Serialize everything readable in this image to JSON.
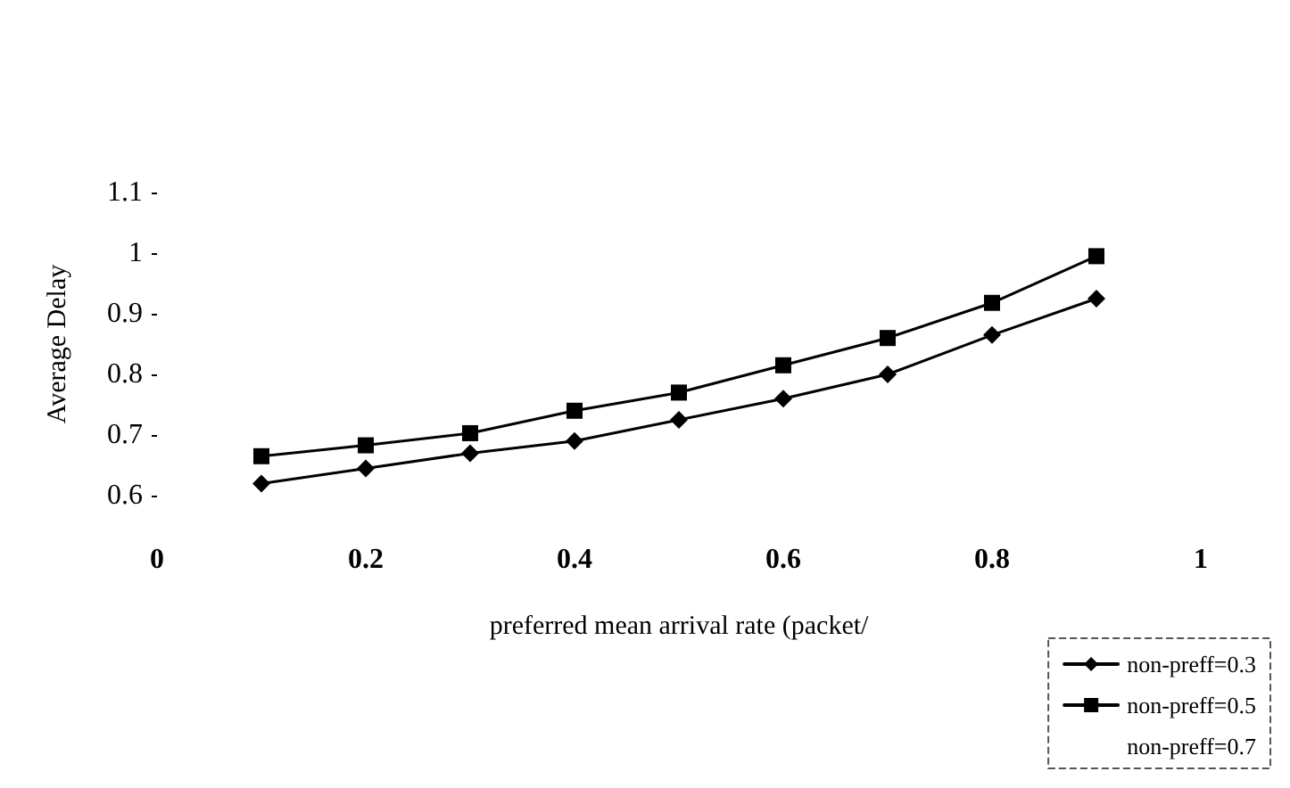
{
  "chart_data": {
    "type": "line",
    "xlabel": "preferred mean arrival rate (packet/",
    "ylabel": "Average Delay",
    "x": [
      0.1,
      0.2,
      0.3,
      0.4,
      0.5,
      0.6,
      0.7,
      0.8,
      0.9
    ],
    "series": [
      {
        "name": "non-preff=0.3",
        "color": "#000000",
        "marker": "diamond",
        "values": [
          0.62,
          0.645,
          0.67,
          0.69,
          0.725,
          0.76,
          0.8,
          0.865,
          0.925
        ]
      },
      {
        "name": "non-preff=0.5",
        "color": "#000000",
        "marker": "square",
        "values": [
          0.665,
          0.683,
          0.703,
          0.74,
          0.77,
          0.815,
          0.86,
          0.918,
          0.995
        ]
      },
      {
        "name": "non-preff=0.7",
        "marker": "none",
        "values": [
          null,
          null,
          null,
          null,
          null,
          null,
          null,
          null,
          null
        ]
      }
    ],
    "xlim": [
      0,
      1
    ],
    "xticks": [
      0,
      0.2,
      0.4,
      0.6,
      0.8,
      1
    ],
    "ylim": [
      0.6,
      1.1
    ],
    "yticks": [
      0.6,
      0.7,
      0.8,
      0.9,
      1,
      1.1
    ],
    "grid": false,
    "legend": "bottom right"
  }
}
